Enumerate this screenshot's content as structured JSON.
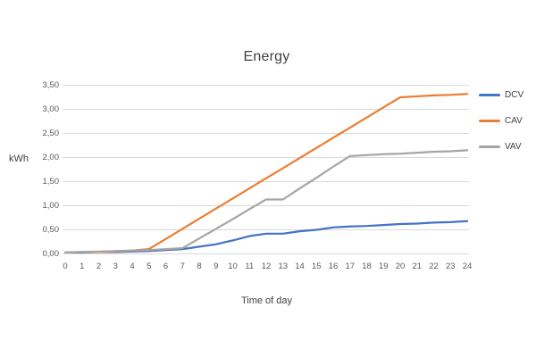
{
  "chart_data": {
    "type": "line",
    "title": "Energy",
    "xlabel": "Time of day",
    "ylabel": "kWh",
    "x": [
      0,
      1,
      2,
      3,
      4,
      5,
      6,
      7,
      8,
      9,
      10,
      11,
      12,
      13,
      14,
      15,
      16,
      17,
      18,
      19,
      20,
      21,
      22,
      23,
      24
    ],
    "x_tick_labels": [
      "0",
      "1",
      "2",
      "3",
      "4",
      "5",
      "6",
      "7",
      "8",
      "9",
      "10",
      "11",
      "12",
      "13",
      "14",
      "15",
      "16",
      "17",
      "18",
      "19",
      "20",
      "21",
      "22",
      "23",
      "24"
    ],
    "y_tick_labels": [
      "0,00",
      "0,50",
      "1,00",
      "1,50",
      "2,00",
      "2,50",
      "3,00",
      "3,50"
    ],
    "ylim": [
      0,
      3.5
    ],
    "y_tick_step": 0.5,
    "decimal_separator": ",",
    "grid": "horizontal",
    "legend_position": "right",
    "gridline_color": "#D9D9D9",
    "text_color": "#595959",
    "title_color": "#404040",
    "series": [
      {
        "name": "DCV",
        "color": "#4472C4",
        "values": [
          0.03,
          0.03,
          0.04,
          0.04,
          0.05,
          0.06,
          0.08,
          0.1,
          0.15,
          0.2,
          0.28,
          0.37,
          0.42,
          0.42,
          0.47,
          0.5,
          0.55,
          0.57,
          0.58,
          0.6,
          0.62,
          0.63,
          0.65,
          0.66,
          0.68
        ]
      },
      {
        "name": "CAV",
        "color": "#ED7D31",
        "values": [
          0.03,
          0.04,
          0.04,
          0.05,
          0.07,
          0.1,
          0.31,
          0.52,
          0.73,
          0.94,
          1.15,
          1.36,
          1.57,
          1.78,
          1.99,
          2.2,
          2.41,
          2.62,
          2.83,
          3.04,
          3.25,
          3.27,
          3.29,
          3.3,
          3.32
        ]
      },
      {
        "name": "VAV",
        "color": "#A5A5A5",
        "values": [
          0.03,
          0.04,
          0.05,
          0.06,
          0.07,
          0.08,
          0.1,
          0.12,
          0.32,
          0.52,
          0.72,
          0.93,
          1.13,
          1.13,
          1.36,
          1.58,
          1.81,
          2.03,
          2.05,
          2.07,
          2.08,
          2.1,
          2.12,
          2.13,
          2.15
        ]
      }
    ]
  }
}
